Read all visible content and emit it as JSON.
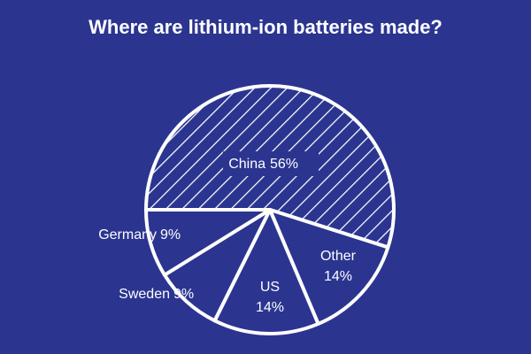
{
  "chart_data": {
    "type": "pie",
    "title": "Where are lithium-ion batteries made?",
    "categories": [
      "China",
      "Other",
      "US",
      "Sweden",
      "Germany"
    ],
    "values": [
      56,
      14,
      14,
      9,
      9
    ],
    "value_labels": [
      "56%",
      "14%",
      "14%",
      "9%",
      "9%"
    ],
    "background": "#2b3590",
    "color": "#ffffff",
    "hatched": [
      true,
      false,
      false,
      false,
      false
    ]
  }
}
